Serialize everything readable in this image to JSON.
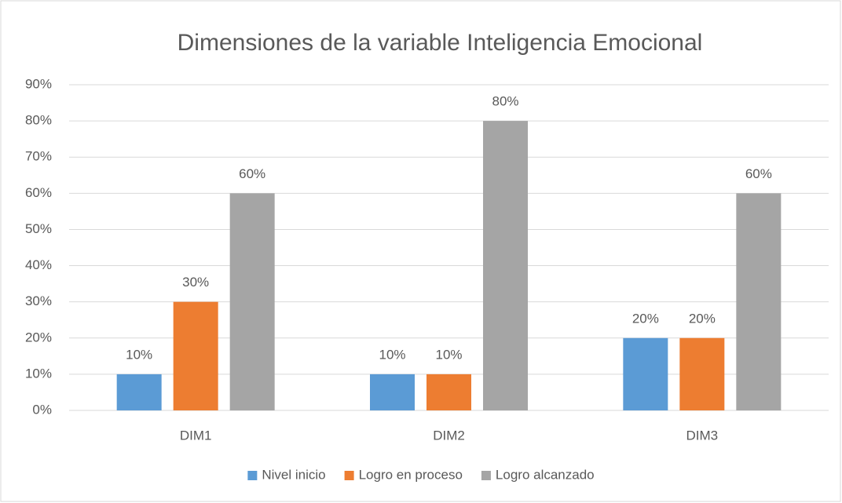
{
  "chart_data": {
    "type": "bar",
    "title": "Dimensiones de la variable Inteligencia Emocional",
    "categories": [
      "DIM1",
      "DIM2",
      "DIM3"
    ],
    "series": [
      {
        "name": "Nivel inicio",
        "color": "#5b9bd5",
        "values": [
          10,
          10,
          20
        ],
        "value_labels": [
          "10%",
          "10%",
          "20%"
        ]
      },
      {
        "name": "Logro en proceso",
        "color": "#ed7d31",
        "values": [
          30,
          10,
          20
        ],
        "value_labels": [
          "30%",
          "10%",
          "20%"
        ]
      },
      {
        "name": "Logro alcanzado",
        "color": "#a5a5a5",
        "values": [
          60,
          80,
          60
        ],
        "value_labels": [
          "60%",
          "80%",
          "60%"
        ]
      }
    ],
    "ylim": [
      0,
      90
    ],
    "yticks": [
      {
        "value": 0,
        "label": "0%"
      },
      {
        "value": 10,
        "label": "10%"
      },
      {
        "value": 20,
        "label": "20%"
      },
      {
        "value": 30,
        "label": "30%"
      },
      {
        "value": 40,
        "label": "40%"
      },
      {
        "value": 50,
        "label": "50%"
      },
      {
        "value": 60,
        "label": "60%"
      },
      {
        "value": 70,
        "label": "70%"
      },
      {
        "value": 80,
        "label": "80%"
      },
      {
        "value": 90,
        "label": "90%"
      }
    ],
    "grid": true,
    "legend": "bottom"
  }
}
